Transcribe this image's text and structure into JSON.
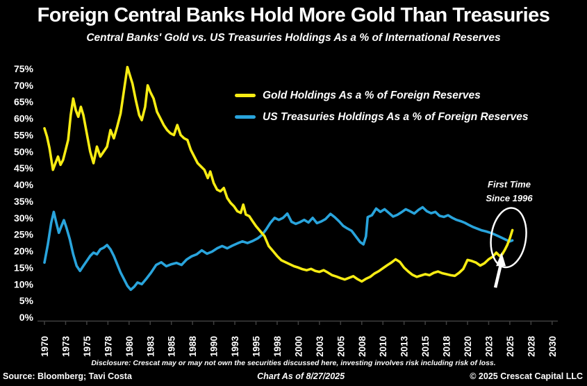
{
  "header": {
    "title": "Foreign Central Banks Hold More Gold Than Treasuries",
    "subtitle": "Central Banks' Gold vs. US Treasuries Holdings As a % of International Reserves"
  },
  "annotation": {
    "line1": "First Time",
    "line2": "Since 1996"
  },
  "footer": {
    "disclosure": "Disclosure: Crescat may or may not own the securities discussed here, investing involves risk including risk of loss.",
    "source": "Source: Bloomberg; Tavi Costa",
    "chart_as_of": "Chart As of 8/27/2025",
    "copyright": "© 2025 Crescat Capital LLC"
  },
  "chart_data": {
    "type": "line",
    "title": "Foreign Central Banks Hold More Gold Than Treasuries",
    "subtitle": "Central Banks' Gold vs. US Treasuries Holdings As a % of International Reserves",
    "xlabel": "",
    "ylabel": "",
    "xlim": [
      1969.5,
      2031
    ],
    "ylim": [
      0,
      77
    ],
    "grid": false,
    "legend_position": "upper middle inside",
    "y_ticks": [
      0,
      5,
      10,
      15,
      20,
      25,
      30,
      35,
      40,
      45,
      50,
      55,
      60,
      65,
      70,
      75
    ],
    "y_tick_suffix": "%",
    "x_ticks": {
      "positions": [
        1970,
        1972.5,
        1975,
        1977.5,
        1980,
        1982.5,
        1985,
        1987.5,
        1990,
        1992.5,
        1995,
        1997.5,
        2000,
        2002.5,
        2005,
        2007.5,
        2010,
        2012.5,
        2015,
        2017.5,
        2020,
        2022.5,
        2025,
        2027.5,
        2030
      ],
      "labels": [
        "1970",
        "1973",
        "1975",
        "1978",
        "1980",
        "1983",
        "1985",
        "1988",
        "1990",
        "1993",
        "1995",
        "1998",
        "2000",
        "2003",
        "2005",
        "2008",
        "2010",
        "2013",
        "2015",
        "2018",
        "2020",
        "2023",
        "2025",
        "2028",
        "2030"
      ]
    },
    "highlight": {
      "x": 2024.85,
      "y": 23.2,
      "note": "Gold crosses above Treasuries, first time since 1996"
    },
    "series": [
      {
        "name": "Gold Holdings As a % of Foreign Reserves",
        "color": "#F7EC13",
        "points": [
          [
            1970.0,
            57
          ],
          [
            1970.3,
            54.5
          ],
          [
            1970.6,
            51
          ],
          [
            1971.0,
            44.5
          ],
          [
            1971.3,
            46.5
          ],
          [
            1971.6,
            48.5
          ],
          [
            1971.9,
            46
          ],
          [
            1972.2,
            47.5
          ],
          [
            1972.5,
            50.5
          ],
          [
            1972.8,
            53.5
          ],
          [
            1973.1,
            61
          ],
          [
            1973.4,
            66
          ],
          [
            1973.7,
            62.5
          ],
          [
            1974.0,
            60.5
          ],
          [
            1974.3,
            63.5
          ],
          [
            1974.6,
            61
          ],
          [
            1975.0,
            55.5
          ],
          [
            1975.4,
            50
          ],
          [
            1975.8,
            46.5
          ],
          [
            1976.2,
            51.5
          ],
          [
            1976.6,
            48.5
          ],
          [
            1977.0,
            50
          ],
          [
            1977.4,
            51.5
          ],
          [
            1977.8,
            56.5
          ],
          [
            1978.2,
            54
          ],
          [
            1978.6,
            57.5
          ],
          [
            1979.0,
            61.5
          ],
          [
            1979.4,
            68.5
          ],
          [
            1979.8,
            75.5
          ],
          [
            1980.1,
            73
          ],
          [
            1980.4,
            70.5
          ],
          [
            1980.8,
            65.5
          ],
          [
            1981.2,
            61
          ],
          [
            1981.5,
            59.5
          ],
          [
            1981.9,
            63.5
          ],
          [
            1982.2,
            70
          ],
          [
            1982.5,
            68
          ],
          [
            1982.9,
            66
          ],
          [
            1983.3,
            62
          ],
          [
            1983.7,
            60
          ],
          [
            1984.1,
            58
          ],
          [
            1984.5,
            56.5
          ],
          [
            1984.9,
            55.5
          ],
          [
            1985.3,
            55
          ],
          [
            1985.7,
            58
          ],
          [
            1986.1,
            55
          ],
          [
            1986.5,
            54
          ],
          [
            1986.9,
            53.5
          ],
          [
            1987.3,
            50.5
          ],
          [
            1987.7,
            48.5
          ],
          [
            1988.1,
            46.5
          ],
          [
            1988.5,
            45.5
          ],
          [
            1988.9,
            44.5
          ],
          [
            1989.3,
            42
          ],
          [
            1989.6,
            44
          ],
          [
            1990.0,
            40.5
          ],
          [
            1990.4,
            38.5
          ],
          [
            1990.8,
            38
          ],
          [
            1991.2,
            39
          ],
          [
            1991.6,
            36
          ],
          [
            1992.0,
            34.5
          ],
          [
            1992.4,
            33.5
          ],
          [
            1992.8,
            32
          ],
          [
            1993.2,
            31.5
          ],
          [
            1993.5,
            34
          ],
          [
            1993.8,
            31
          ],
          [
            1994.2,
            30.5
          ],
          [
            1994.6,
            29
          ],
          [
            1995.0,
            27.5
          ],
          [
            1995.5,
            26
          ],
          [
            1996.0,
            24.5
          ],
          [
            1996.5,
            21.5
          ],
          [
            1997.0,
            20
          ],
          [
            1997.5,
            18.5
          ],
          [
            1998.0,
            17.2
          ],
          [
            1998.5,
            16.6
          ],
          [
            1999.0,
            16
          ],
          [
            1999.5,
            15.4
          ],
          [
            2000.0,
            15
          ],
          [
            2000.5,
            14.5
          ],
          [
            2001.0,
            14.2
          ],
          [
            2001.5,
            14.6
          ],
          [
            2002.0,
            14
          ],
          [
            2002.5,
            13.7
          ],
          [
            2003.0,
            14.2
          ],
          [
            2003.5,
            13.5
          ],
          [
            2004.0,
            12.7
          ],
          [
            2004.5,
            12.3
          ],
          [
            2005.0,
            11.8
          ],
          [
            2005.5,
            11.4
          ],
          [
            2006.0,
            11.9
          ],
          [
            2006.5,
            12.4
          ],
          [
            2007.0,
            11.5
          ],
          [
            2007.5,
            10.8
          ],
          [
            2008.0,
            11.6
          ],
          [
            2008.5,
            12.2
          ],
          [
            2009.0,
            13.2
          ],
          [
            2009.5,
            13.9
          ],
          [
            2010.0,
            14.8
          ],
          [
            2010.5,
            15.7
          ],
          [
            2011.0,
            16.5
          ],
          [
            2011.5,
            17.5
          ],
          [
            2012.0,
            16.7
          ],
          [
            2012.5,
            15
          ],
          [
            2013.0,
            13.8
          ],
          [
            2013.5,
            12.8
          ],
          [
            2014.0,
            12.2
          ],
          [
            2014.5,
            12.6
          ],
          [
            2015.0,
            13
          ],
          [
            2015.5,
            12.7
          ],
          [
            2016.0,
            13.4
          ],
          [
            2016.5,
            13.8
          ],
          [
            2017.0,
            13.3
          ],
          [
            2017.5,
            13
          ],
          [
            2018.0,
            12.7
          ],
          [
            2018.5,
            12.5
          ],
          [
            2019.0,
            13.4
          ],
          [
            2019.5,
            14.6
          ],
          [
            2020.0,
            17.3
          ],
          [
            2020.5,
            17
          ],
          [
            2021.0,
            16.5
          ],
          [
            2021.5,
            15.6
          ],
          [
            2022.0,
            16.3
          ],
          [
            2022.5,
            17.5
          ],
          [
            2023.0,
            18.3
          ],
          [
            2023.4,
            19.5
          ],
          [
            2023.8,
            18.5
          ],
          [
            2024.1,
            19
          ],
          [
            2024.4,
            20.3
          ],
          [
            2024.7,
            21.8
          ],
          [
            2025.0,
            23.8
          ],
          [
            2025.3,
            26.3
          ]
        ]
      },
      {
        "name": "US Treasuries Holdings As a % of Foreign Reserves",
        "color": "#29A4DC",
        "points": [
          [
            1970.0,
            16.5
          ],
          [
            1970.4,
            22
          ],
          [
            1970.8,
            28.5
          ],
          [
            1971.1,
            31.8
          ],
          [
            1971.4,
            28.5
          ],
          [
            1971.7,
            25.5
          ],
          [
            1972.0,
            27.5
          ],
          [
            1972.3,
            29.3
          ],
          [
            1972.6,
            27
          ],
          [
            1973.0,
            23.5
          ],
          [
            1973.4,
            19
          ],
          [
            1973.8,
            15.5
          ],
          [
            1974.2,
            14
          ],
          [
            1974.6,
            15.5
          ],
          [
            1975.0,
            17
          ],
          [
            1975.4,
            18.5
          ],
          [
            1975.8,
            19.5
          ],
          [
            1976.2,
            19
          ],
          [
            1976.6,
            20.5
          ],
          [
            1977.0,
            21
          ],
          [
            1977.4,
            21.8
          ],
          [
            1977.8,
            20.5
          ],
          [
            1978.2,
            18.5
          ],
          [
            1978.6,
            16
          ],
          [
            1979.0,
            13.5
          ],
          [
            1979.4,
            11.5
          ],
          [
            1979.8,
            9.5
          ],
          [
            1980.2,
            8.3
          ],
          [
            1980.6,
            9.2
          ],
          [
            1981.0,
            10.5
          ],
          [
            1981.5,
            10
          ],
          [
            1982.0,
            11.5
          ],
          [
            1982.6,
            13.5
          ],
          [
            1983.2,
            15.8
          ],
          [
            1983.8,
            16.6
          ],
          [
            1984.4,
            15.4
          ],
          [
            1985.0,
            16
          ],
          [
            1985.6,
            16.4
          ],
          [
            1986.2,
            15.8
          ],
          [
            1986.8,
            17.4
          ],
          [
            1987.4,
            18.4
          ],
          [
            1988.0,
            19
          ],
          [
            1988.6,
            20.2
          ],
          [
            1989.2,
            19.2
          ],
          [
            1989.8,
            19.8
          ],
          [
            1990.4,
            20.8
          ],
          [
            1991.0,
            21.5
          ],
          [
            1991.6,
            20.8
          ],
          [
            1992.2,
            21.6
          ],
          [
            1992.8,
            22.3
          ],
          [
            1993.4,
            22.9
          ],
          [
            1994.0,
            22.4
          ],
          [
            1994.6,
            23
          ],
          [
            1995.2,
            23.8
          ],
          [
            1995.7,
            24.8
          ],
          [
            1996.2,
            26.5
          ],
          [
            1996.7,
            28.5
          ],
          [
            1997.2,
            30
          ],
          [
            1997.7,
            29.4
          ],
          [
            1998.2,
            30
          ],
          [
            1998.7,
            31.3
          ],
          [
            1999.2,
            28.8
          ],
          [
            1999.7,
            28.2
          ],
          [
            2000.2,
            28.7
          ],
          [
            2000.7,
            29.4
          ],
          [
            2001.2,
            28.6
          ],
          [
            2001.7,
            30
          ],
          [
            2002.2,
            28.4
          ],
          [
            2002.7,
            28.9
          ],
          [
            2003.2,
            29.6
          ],
          [
            2003.8,
            31.2
          ],
          [
            2004.3,
            30.2
          ],
          [
            2004.8,
            29
          ],
          [
            2005.3,
            27.6
          ],
          [
            2005.8,
            26.8
          ],
          [
            2006.3,
            26.1
          ],
          [
            2006.8,
            24.4
          ],
          [
            2007.3,
            22.7
          ],
          [
            2007.7,
            22
          ],
          [
            2008.0,
            24.4
          ],
          [
            2008.2,
            30.2
          ],
          [
            2008.7,
            30.8
          ],
          [
            2009.2,
            32.8
          ],
          [
            2009.7,
            31.8
          ],
          [
            2010.2,
            32.6
          ],
          [
            2010.7,
            31.5
          ],
          [
            2011.2,
            30.4
          ],
          [
            2011.7,
            30.9
          ],
          [
            2012.2,
            31.7
          ],
          [
            2012.7,
            32.6
          ],
          [
            2013.2,
            32
          ],
          [
            2013.7,
            31.3
          ],
          [
            2014.2,
            32.4
          ],
          [
            2014.7,
            33.2
          ],
          [
            2015.2,
            32
          ],
          [
            2015.7,
            31.4
          ],
          [
            2016.2,
            31.8
          ],
          [
            2016.7,
            30.6
          ],
          [
            2017.2,
            30.3
          ],
          [
            2017.7,
            30.8
          ],
          [
            2018.2,
            30
          ],
          [
            2018.7,
            29.4
          ],
          [
            2019.2,
            29
          ],
          [
            2019.7,
            28.5
          ],
          [
            2020.2,
            27.8
          ],
          [
            2020.7,
            27.2
          ],
          [
            2021.2,
            26.7
          ],
          [
            2021.7,
            26.2
          ],
          [
            2022.2,
            25.9
          ],
          [
            2022.7,
            25.5
          ],
          [
            2023.2,
            25
          ],
          [
            2023.7,
            24.4
          ],
          [
            2024.2,
            23.8
          ],
          [
            2024.7,
            23.2
          ],
          [
            2025.0,
            22.9
          ],
          [
            2025.3,
            23.2
          ]
        ]
      }
    ]
  }
}
